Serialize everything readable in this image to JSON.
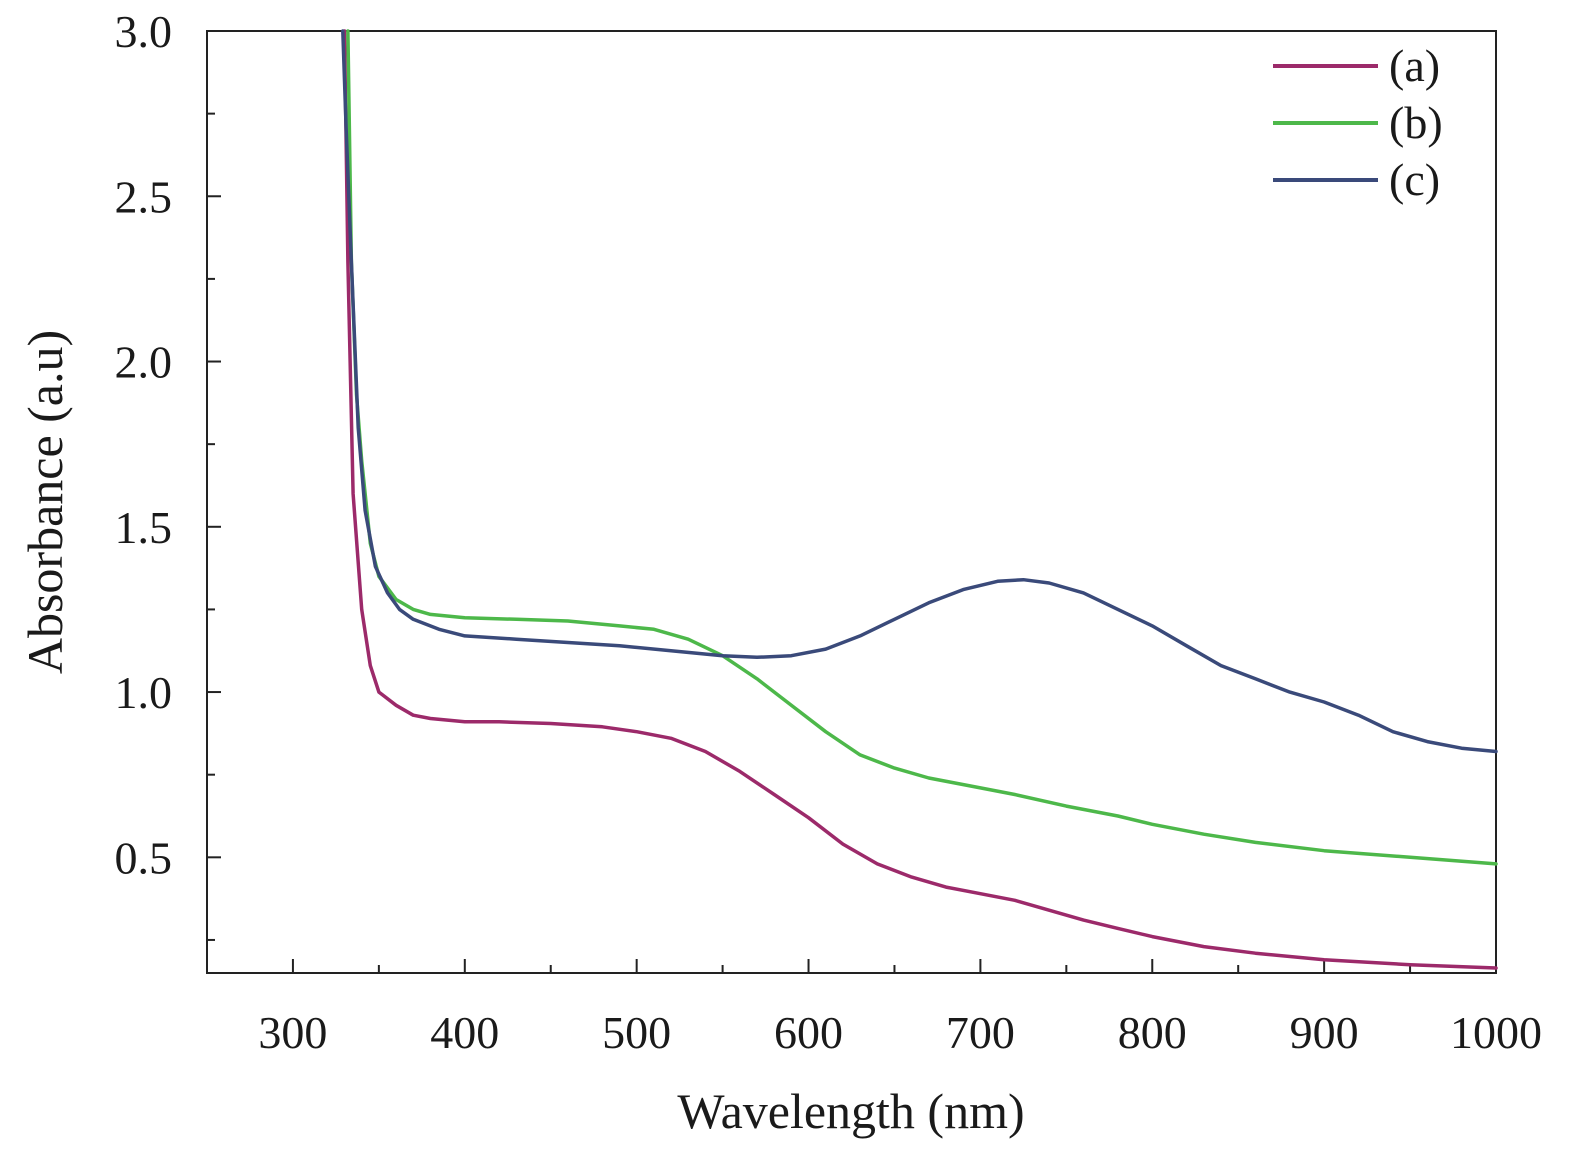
{
  "chart_data": {
    "type": "line",
    "title": "",
    "xlabel": "Wavelength (nm)",
    "ylabel": "Absorbance (a.u)",
    "xlim": [
      250,
      1000
    ],
    "ylim": [
      0.15,
      3.0
    ],
    "x_major_ticks": [
      300,
      400,
      500,
      600,
      700,
      800,
      900,
      1000
    ],
    "x_tick_labels": [
      "300",
      "400",
      "500",
      "600",
      "700",
      "800",
      "900",
      "1000"
    ],
    "y_major_ticks": [
      0.5,
      1.0,
      1.5,
      2.0,
      2.5,
      3.0
    ],
    "y_tick_labels": [
      "0.5",
      "1.0",
      "1.5",
      "2.0",
      "2.5",
      "3.0"
    ],
    "grid": false,
    "legend_position": "top-right",
    "series": [
      {
        "name": "(a)",
        "color": "#9c2a6a",
        "points": [
          [
            330,
            3.0
          ],
          [
            332,
            2.3
          ],
          [
            335,
            1.6
          ],
          [
            340,
            1.25
          ],
          [
            345,
            1.08
          ],
          [
            350,
            1.0
          ],
          [
            360,
            0.96
          ],
          [
            370,
            0.93
          ],
          [
            380,
            0.92
          ],
          [
            400,
            0.91
          ],
          [
            420,
            0.91
          ],
          [
            450,
            0.905
          ],
          [
            480,
            0.895
          ],
          [
            500,
            0.88
          ],
          [
            520,
            0.86
          ],
          [
            540,
            0.82
          ],
          [
            560,
            0.76
          ],
          [
            580,
            0.69
          ],
          [
            600,
            0.62
          ],
          [
            620,
            0.54
          ],
          [
            640,
            0.48
          ],
          [
            660,
            0.44
          ],
          [
            680,
            0.41
          ],
          [
            700,
            0.39
          ],
          [
            720,
            0.37
          ],
          [
            740,
            0.34
          ],
          [
            760,
            0.31
          ],
          [
            780,
            0.285
          ],
          [
            800,
            0.26
          ],
          [
            830,
            0.23
          ],
          [
            860,
            0.21
          ],
          [
            900,
            0.19
          ],
          [
            950,
            0.175
          ],
          [
            1000,
            0.165
          ]
        ]
      },
      {
        "name": "(b)",
        "color": "#4db84a",
        "points": [
          [
            332,
            3.0
          ],
          [
            334,
            2.3
          ],
          [
            337,
            1.9
          ],
          [
            340,
            1.7
          ],
          [
            345,
            1.45
          ],
          [
            350,
            1.35
          ],
          [
            360,
            1.28
          ],
          [
            370,
            1.25
          ],
          [
            380,
            1.235
          ],
          [
            400,
            1.225
          ],
          [
            430,
            1.22
          ],
          [
            460,
            1.215
          ],
          [
            490,
            1.2
          ],
          [
            510,
            1.19
          ],
          [
            530,
            1.16
          ],
          [
            550,
            1.11
          ],
          [
            570,
            1.04
          ],
          [
            590,
            0.96
          ],
          [
            610,
            0.88
          ],
          [
            630,
            0.81
          ],
          [
            650,
            0.77
          ],
          [
            670,
            0.74
          ],
          [
            700,
            0.71
          ],
          [
            720,
            0.69
          ],
          [
            750,
            0.655
          ],
          [
            780,
            0.625
          ],
          [
            800,
            0.6
          ],
          [
            830,
            0.57
          ],
          [
            860,
            0.545
          ],
          [
            900,
            0.52
          ],
          [
            950,
            0.5
          ],
          [
            1000,
            0.48
          ]
        ]
      },
      {
        "name": "(c)",
        "color": "#3a4a7a",
        "points": [
          [
            329,
            3.0
          ],
          [
            331,
            2.7
          ],
          [
            334,
            2.3
          ],
          [
            338,
            1.8
          ],
          [
            342,
            1.55
          ],
          [
            348,
            1.38
          ],
          [
            355,
            1.3
          ],
          [
            362,
            1.25
          ],
          [
            370,
            1.22
          ],
          [
            385,
            1.19
          ],
          [
            400,
            1.17
          ],
          [
            430,
            1.16
          ],
          [
            460,
            1.15
          ],
          [
            490,
            1.14
          ],
          [
            520,
            1.125
          ],
          [
            550,
            1.11
          ],
          [
            570,
            1.105
          ],
          [
            590,
            1.11
          ],
          [
            610,
            1.13
          ],
          [
            630,
            1.17
          ],
          [
            650,
            1.22
          ],
          [
            670,
            1.27
          ],
          [
            690,
            1.31
          ],
          [
            710,
            1.335
          ],
          [
            725,
            1.34
          ],
          [
            740,
            1.33
          ],
          [
            760,
            1.3
          ],
          [
            780,
            1.25
          ],
          [
            800,
            1.2
          ],
          [
            820,
            1.14
          ],
          [
            840,
            1.08
          ],
          [
            860,
            1.04
          ],
          [
            880,
            1.0
          ],
          [
            900,
            0.97
          ],
          [
            920,
            0.93
          ],
          [
            940,
            0.88
          ],
          [
            960,
            0.85
          ],
          [
            980,
            0.83
          ],
          [
            1000,
            0.82
          ]
        ]
      }
    ]
  }
}
